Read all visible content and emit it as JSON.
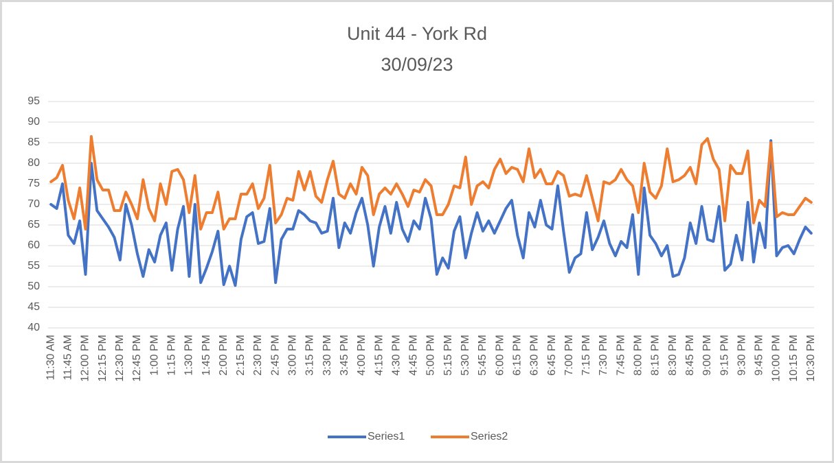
{
  "chart_data": {
    "type": "line",
    "title": "Unit 44 - York Rd",
    "subtitle": "30/09/23",
    "categories": [
      "11:30 AM",
      null,
      null,
      "11:45 AM",
      null,
      null,
      "12:00 PM",
      null,
      null,
      "12:15 PM",
      null,
      null,
      "12:30 PM",
      null,
      null,
      "12:45 PM",
      null,
      null,
      "1:00 PM",
      null,
      null,
      "1:15 PM",
      null,
      null,
      "1:30 PM",
      null,
      null,
      "1:45 PM",
      null,
      null,
      "2:00 PM",
      null,
      null,
      "2:15 PM",
      null,
      null,
      "2:30 PM",
      null,
      null,
      "2:45 PM",
      null,
      null,
      "3:00 PM",
      null,
      null,
      "3:15 PM",
      null,
      null,
      "3:30 PM",
      null,
      null,
      "3:45 PM",
      null,
      null,
      "4:00 PM",
      null,
      null,
      "4:15 PM",
      null,
      null,
      "4:30 PM",
      null,
      null,
      "4:45 PM",
      null,
      null,
      "5:00 PM",
      null,
      null,
      "5:15 PM",
      null,
      null,
      "5:30 PM",
      null,
      null,
      "5:45 PM",
      null,
      null,
      "6:00 PM",
      null,
      null,
      "6:15 PM",
      null,
      null,
      "6:30 PM",
      null,
      null,
      "6:45 PM",
      null,
      null,
      "7:00 PM",
      null,
      null,
      "7:15 PM",
      null,
      null,
      "7:30 PM",
      null,
      null,
      "7:45 PM",
      null,
      null,
      "8:00 PM",
      null,
      null,
      "8:15 PM",
      null,
      null,
      "8:30 PM",
      null,
      null,
      "8:45 PM",
      null,
      null,
      "9:00 PM",
      null,
      null,
      "9:15 PM",
      null,
      null,
      "9:30 PM",
      null,
      null,
      "9:45 PM",
      null,
      null,
      "10:00 PM",
      null,
      null,
      "10:15 PM",
      null,
      null,
      "10:30 PM"
    ],
    "series": [
      {
        "name": "Series1",
        "color": "#4472c4",
        "values": [
          70,
          69,
          75,
          62.5,
          60.5,
          66,
          53,
          80,
          68.5,
          66.5,
          64.5,
          62,
          56.5,
          70,
          65,
          58,
          52.5,
          59,
          56,
          62.5,
          65.5,
          54,
          64,
          69.5,
          52.5,
          70,
          51,
          54.5,
          58.5,
          63.5,
          50.5,
          55,
          50.3,
          61.5,
          67,
          68,
          60.5,
          61,
          69,
          51,
          61.5,
          64,
          64,
          68.5,
          67.5,
          66,
          65.5,
          63,
          63.5,
          71.5,
          59.5,
          65.5,
          63,
          68,
          71.5,
          65,
          55,
          64.5,
          69.5,
          63,
          70.5,
          64,
          61,
          66,
          64,
          71.5,
          66.5,
          53,
          57,
          54.5,
          63.5,
          67,
          57,
          63,
          68,
          63.5,
          66,
          63,
          66,
          69,
          71,
          62.5,
          57,
          68,
          64.5,
          71,
          65,
          64,
          74.5,
          63.5,
          53.5,
          57,
          58,
          68,
          59,
          62,
          66,
          60.5,
          57.5,
          61,
          59.5,
          67.5,
          53,
          74,
          62.5,
          60.5,
          57.5,
          60,
          52.5,
          53,
          57,
          65.5,
          60.5,
          69.5,
          61.5,
          61,
          69.5,
          54,
          55.5,
          62.5,
          56.5,
          70.5,
          56,
          65.5,
          59.5,
          85.5,
          57.5,
          59.5,
          60,
          58,
          61.5,
          64.5,
          63
        ]
      },
      {
        "name": "Series2",
        "color": "#ed7d31",
        "values": [
          75.5,
          76.5,
          79.5,
          71,
          66.5,
          74,
          64,
          86.5,
          76,
          73.5,
          73.5,
          68.5,
          68.5,
          73,
          70,
          66.5,
          76,
          69,
          66,
          75,
          70,
          78,
          78.5,
          76,
          68,
          77,
          64,
          68,
          68,
          73,
          64,
          66.5,
          66.5,
          72.5,
          72.5,
          75,
          69,
          71.5,
          79.5,
          65.5,
          67.5,
          71.5,
          71,
          78,
          73.5,
          78,
          72,
          70.5,
          76,
          80.5,
          72.5,
          71.5,
          75,
          72.5,
          79,
          77,
          67.5,
          72.5,
          74,
          72.5,
          75,
          72.5,
          69.5,
          73.5,
          73,
          76,
          74.5,
          67.5,
          67.5,
          70,
          74.5,
          74,
          81.5,
          70,
          74.5,
          75.5,
          74,
          78.5,
          81,
          77.5,
          79,
          78.5,
          75.5,
          83.5,
          76.5,
          78.5,
          75,
          75,
          78,
          77,
          72,
          72.5,
          72,
          77,
          71.5,
          66,
          75.5,
          75,
          76,
          78.5,
          76,
          74.5,
          68,
          80,
          73,
          71.5,
          74.5,
          83.5,
          75.5,
          76,
          77,
          79,
          75,
          84.5,
          86,
          81,
          78.5,
          66,
          79.5,
          77.5,
          77.5,
          83,
          65.5,
          71,
          69.5,
          85,
          67,
          68,
          67.5,
          67.5,
          69.5,
          71.5,
          70.5
        ]
      }
    ],
    "ylim": [
      40,
      95
    ],
    "yticks": [
      40,
      45,
      50,
      55,
      60,
      65,
      70,
      75,
      80,
      85,
      90,
      95
    ],
    "grid": true,
    "legend": "bottom"
  }
}
